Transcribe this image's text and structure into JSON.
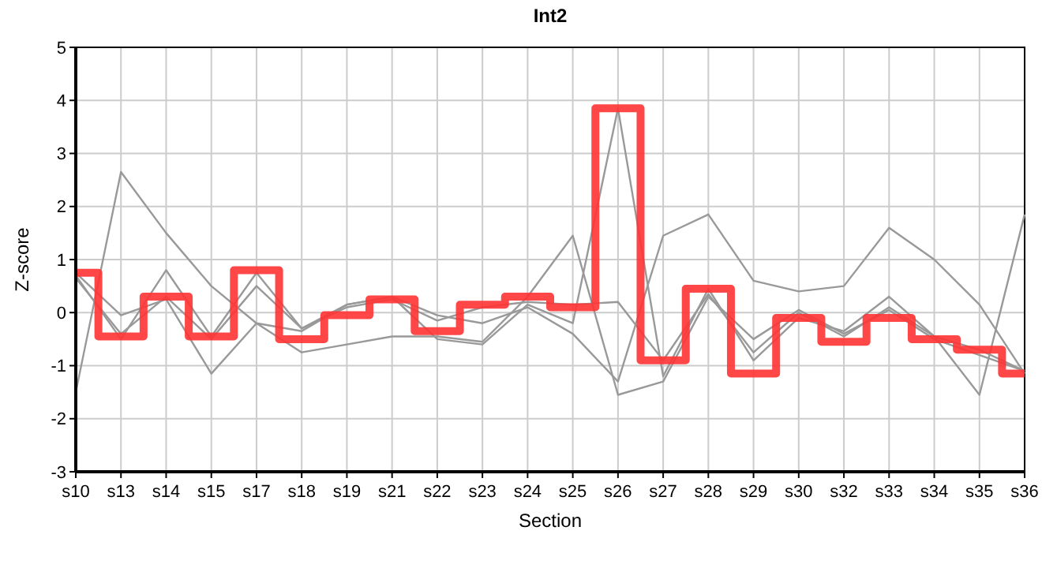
{
  "chart_data": {
    "type": "line",
    "title": "Int2",
    "xlabel": "Section",
    "ylabel": "Z-score",
    "categories": [
      "s10",
      "s13",
      "s14",
      "s15",
      "s17",
      "s18",
      "s19",
      "s21",
      "s22",
      "s23",
      "s24",
      "s25",
      "s26",
      "s27",
      "s28",
      "s29",
      "s30",
      "s32",
      "s33",
      "s34",
      "s35",
      "s36"
    ],
    "series": [
      {
        "type": "line",
        "color": "#999999",
        "values": [
          -1.5,
          2.65,
          1.5,
          0.5,
          -0.2,
          -0.35,
          0.15,
          0.3,
          -0.05,
          -0.2,
          0.1,
          -0.4,
          -1.3,
          1.45,
          1.85,
          0.6,
          0.4,
          0.5,
          1.6,
          1.0,
          0.15,
          -1.15
        ]
      },
      {
        "type": "line",
        "color": "#999999",
        "values": [
          0.7,
          -0.5,
          0.8,
          -0.45,
          0.75,
          -0.3,
          0.15,
          0.3,
          -0.5,
          -0.6,
          0.15,
          -0.2,
          3.85,
          -1.2,
          0.45,
          -0.9,
          -0.1,
          -0.35,
          0.3,
          -0.45,
          -1.55,
          1.85
        ]
      },
      {
        "type": "line",
        "color": "#999999",
        "values": [
          0.75,
          -0.05,
          0.25,
          -1.15,
          -0.2,
          -0.75,
          -0.6,
          -0.45,
          -0.45,
          -0.55,
          0.3,
          1.45,
          -1.55,
          -1.3,
          0.3,
          -0.5,
          0.05,
          -0.4,
          0.05,
          -0.5,
          -0.8,
          -1.1
        ]
      },
      {
        "type": "line",
        "color": "#999999",
        "values": [
          0.65,
          -0.4,
          0.3,
          -0.5,
          0.5,
          -0.3,
          0.1,
          0.25,
          -0.15,
          0.1,
          0.2,
          0.15,
          0.2,
          -0.9,
          0.35,
          -0.75,
          0.0,
          -0.45,
          0.1,
          -0.45,
          -0.7,
          -1.1
        ]
      },
      {
        "type": "step",
        "color": "#ff3333",
        "values": [
          0.75,
          -0.45,
          0.3,
          -0.45,
          0.8,
          -0.5,
          -0.05,
          0.25,
          -0.35,
          0.15,
          0.3,
          0.1,
          3.85,
          -0.9,
          0.45,
          -1.15,
          -0.1,
          -0.55,
          -0.1,
          -0.5,
          -0.7,
          -1.15
        ]
      }
    ],
    "ylim": [
      -3,
      5
    ],
    "yticks": [
      -3,
      -2,
      -1,
      0,
      1,
      2,
      3,
      4,
      5
    ],
    "grid": true
  }
}
